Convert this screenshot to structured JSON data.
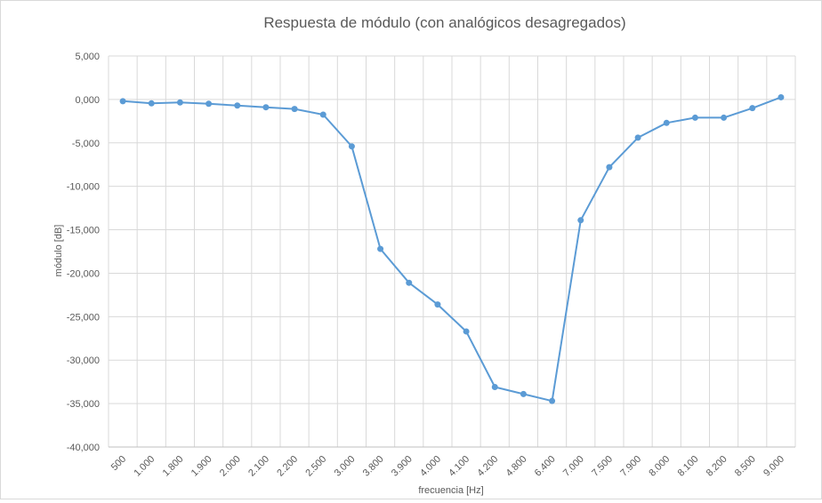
{
  "chart_data": {
    "type": "line",
    "title": "Respuesta de módulo (con analógicos desagregados)",
    "xlabel": "frecuencia [Hz]",
    "ylabel": "módulo [dB]",
    "ylim": [
      -40,
      5
    ],
    "yticks": [
      5,
      0,
      -5,
      -10,
      -15,
      -20,
      -25,
      -30,
      -35,
      -40
    ],
    "ytick_labels": [
      "5,000",
      "0,000",
      "-5,000",
      "-10,000",
      "-15,000",
      "-20,000",
      "-25,000",
      "-30,000",
      "-35,000",
      "-40,000"
    ],
    "grid": true,
    "legend": "none",
    "categories": [
      "500",
      "1.000",
      "1.800",
      "1.900",
      "2.000",
      "2.100",
      "2.200",
      "2.500",
      "3.000",
      "3.800",
      "3.900",
      "4.000",
      "4.100",
      "4.200",
      "4.800",
      "6.400",
      "7.000",
      "7.500",
      "7.900",
      "8.000",
      "8.100",
      "8.200",
      "8.500",
      "9.000"
    ],
    "series": [
      {
        "values": [
          -0.2,
          -0.45,
          -0.35,
          -0.5,
          -0.7,
          -0.9,
          -1.1,
          -1.75,
          -5.4,
          -17.2,
          -21.1,
          -23.6,
          -26.7,
          -33.1,
          -33.9,
          -34.7,
          -13.9,
          -7.8,
          -4.4,
          -2.7,
          -2.1,
          -2.1,
          -1.0,
          0.25
        ],
        "color": "#5b9bd5"
      }
    ]
  }
}
